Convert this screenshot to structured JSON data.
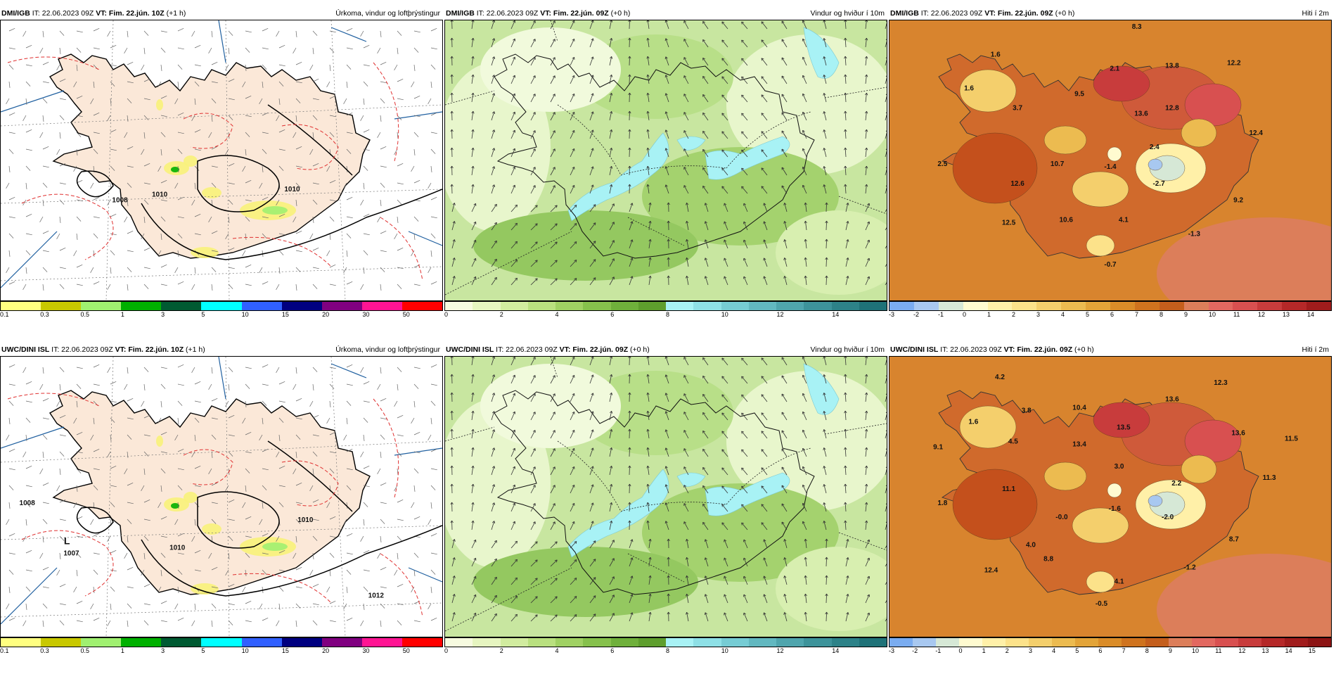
{
  "panels": [
    {
      "id": "p1",
      "model": "DMI/IGB",
      "it": "IT: 22.06.2023 09Z",
      "vt": "VT: Fim. 22.jún. 10Z",
      "lead": "(+1 h)",
      "title": "Úrkoma, vindur og loftþrýstingur",
      "type": "precip",
      "values": [
        {
          "text": "1008"
        },
        {
          "text": "1010"
        },
        {
          "text": "1010"
        }
      ]
    },
    {
      "id": "p2",
      "model": "DMI/IGB",
      "it": "IT: 22.06.2023 09Z",
      "vt": "VT: Fim. 22.jún. 09Z",
      "lead": "(+0 h)",
      "title": "Vindur og hviður í 10m",
      "type": "wind",
      "values": []
    },
    {
      "id": "p3",
      "model": "DMI/IGB",
      "it": "IT: 22.06.2023 09Z",
      "vt": "VT: Fim. 22.jún. 09Z",
      "lead": "(+0 h)",
      "title": "Hiti í 2m",
      "type": "temp",
      "values": [
        {
          "text": "8.3"
        },
        {
          "text": "1.6"
        },
        {
          "text": "1.6"
        },
        {
          "text": "3.7"
        },
        {
          "text": "9.5"
        },
        {
          "text": "2.1"
        },
        {
          "text": "13.8"
        },
        {
          "text": "12.2"
        },
        {
          "text": "13.6"
        },
        {
          "text": "12.8"
        },
        {
          "text": "12.4"
        },
        {
          "text": "2.4"
        },
        {
          "text": "2.5"
        },
        {
          "text": "10.7"
        },
        {
          "text": "-1.4"
        },
        {
          "text": "12.6"
        },
        {
          "text": "-2.7"
        },
        {
          "text": "9.2"
        },
        {
          "text": "10.6"
        },
        {
          "text": "12.5"
        },
        {
          "text": "4.1"
        },
        {
          "text": "-1.3"
        },
        {
          "text": "-0.7"
        }
      ]
    },
    {
      "id": "p4",
      "model": "UWC/DINI ISL",
      "it": "IT: 22.06.2023 09Z",
      "vt": "VT: Fim. 22.jún. 10Z",
      "lead": "(+1 h)",
      "title": "Úrkoma, vindur og loftþrýstingur",
      "type": "precip",
      "values": [
        {
          "text": "L"
        },
        {
          "text": "1007"
        },
        {
          "text": "1008"
        },
        {
          "text": "1010"
        },
        {
          "text": "1012"
        },
        {
          "text": "1010"
        }
      ]
    },
    {
      "id": "p5",
      "model": "UWC/DINI ISL",
      "it": "IT: 22.06.2023 09Z",
      "vt": "VT: Fim. 22.jún. 09Z",
      "lead": "(+0 h)",
      "title": "Vindur og hviður í 10m",
      "type": "wind",
      "values": []
    },
    {
      "id": "p6",
      "model": "UWC/DINI ISL",
      "it": "IT: 22.06.2023 09Z",
      "vt": "VT: Fim. 22.jún. 09Z",
      "lead": "(+0 h)",
      "title": "Hiti í 2m",
      "type": "temp",
      "values": [
        {
          "text": "4.2"
        },
        {
          "text": "3.8"
        },
        {
          "text": "1.6"
        },
        {
          "text": "10.4"
        },
        {
          "text": "12.3"
        },
        {
          "text": "13.6"
        },
        {
          "text": "9.1"
        },
        {
          "text": "4.5"
        },
        {
          "text": "13.4"
        },
        {
          "text": "13.5"
        },
        {
          "text": "13.6"
        },
        {
          "text": "11.5"
        },
        {
          "text": "3.0"
        },
        {
          "text": "11.1"
        },
        {
          "text": "2.2"
        },
        {
          "text": "11.3"
        },
        {
          "text": "1.8"
        },
        {
          "text": "-0.0"
        },
        {
          "text": "-1.6"
        },
        {
          "text": "-2.0"
        },
        {
          "text": "4.0"
        },
        {
          "text": "8.7"
        },
        {
          "text": "8.8"
        },
        {
          "text": "-1.2"
        },
        {
          "text": "12.4"
        },
        {
          "text": "4.1"
        },
        {
          "text": "-0.5"
        }
      ]
    }
  ],
  "scales": {
    "precip": {
      "colors": [
        "#ffff80",
        "#c8c800",
        "#a0f070",
        "#00b000",
        "#005a32",
        "#00ffff",
        "#3060ff",
        "#000080",
        "#800080",
        "#ff1493",
        "#ff0000"
      ],
      "labels": [
        "0.1",
        "0.3",
        "0.5",
        "1",
        "3",
        "5",
        "10",
        "15",
        "20",
        "30",
        "50"
      ]
    },
    "wind": {
      "colors": [
        "#f7fbe0",
        "#e6f5c0",
        "#d1ec9f",
        "#b9e07f",
        "#a0d163",
        "#86c14c",
        "#6fb03b",
        "#5e9e2d",
        "#a8f2f5",
        "#8ee0e6",
        "#76ccd4",
        "#62b8c0",
        "#4fa5ad",
        "#3d939a",
        "#2d8288",
        "#1f7278"
      ],
      "labels": [
        "0",
        "2",
        "4",
        "6",
        "8",
        "10",
        "12",
        "14"
      ]
    },
    "temp_top": {
      "colors": [
        "#7aacf0",
        "#a8c8f0",
        "#d6e8d6",
        "#fffbd0",
        "#fff0a8",
        "#fce28a",
        "#f4cf6c",
        "#ecbb50",
        "#e3a438",
        "#da8c28",
        "#cf731e",
        "#c45e1c",
        "#dc7e5a",
        "#e26860",
        "#d85050",
        "#c83c3c",
        "#b52828",
        "#a01c1c"
      ],
      "labels": [
        "-3",
        "-2",
        "-1",
        "0",
        "1",
        "2",
        "3",
        "4",
        "5",
        "6",
        "7",
        "8",
        "9",
        "10",
        "11",
        "12",
        "13",
        "14"
      ]
    },
    "temp_bottom": {
      "colors": [
        "#7aacf0",
        "#a8c8f0",
        "#d6e8d6",
        "#fffbd0",
        "#fff0a8",
        "#fce28a",
        "#f4cf6c",
        "#ecbb50",
        "#e3a438",
        "#da8c28",
        "#cf731e",
        "#c45e1c",
        "#dc7e5a",
        "#e26860",
        "#d85050",
        "#c83c3c",
        "#b52828",
        "#a01c1c",
        "#8c1414"
      ],
      "labels": [
        "-3",
        "-2",
        "-1",
        "0",
        "1",
        "2",
        "3",
        "4",
        "5",
        "6",
        "7",
        "8",
        "9",
        "10",
        "11",
        "12",
        "13",
        "14",
        "15"
      ]
    }
  },
  "colors": {
    "land_precip": "#fbe8d8",
    "sea_precip": "#ffffff",
    "temp_bg": "#d8842e",
    "wind_bg": "#c8e6a0",
    "isobar": "#000000",
    "dashed": "#e03030",
    "gust": "#a8f2f5"
  }
}
